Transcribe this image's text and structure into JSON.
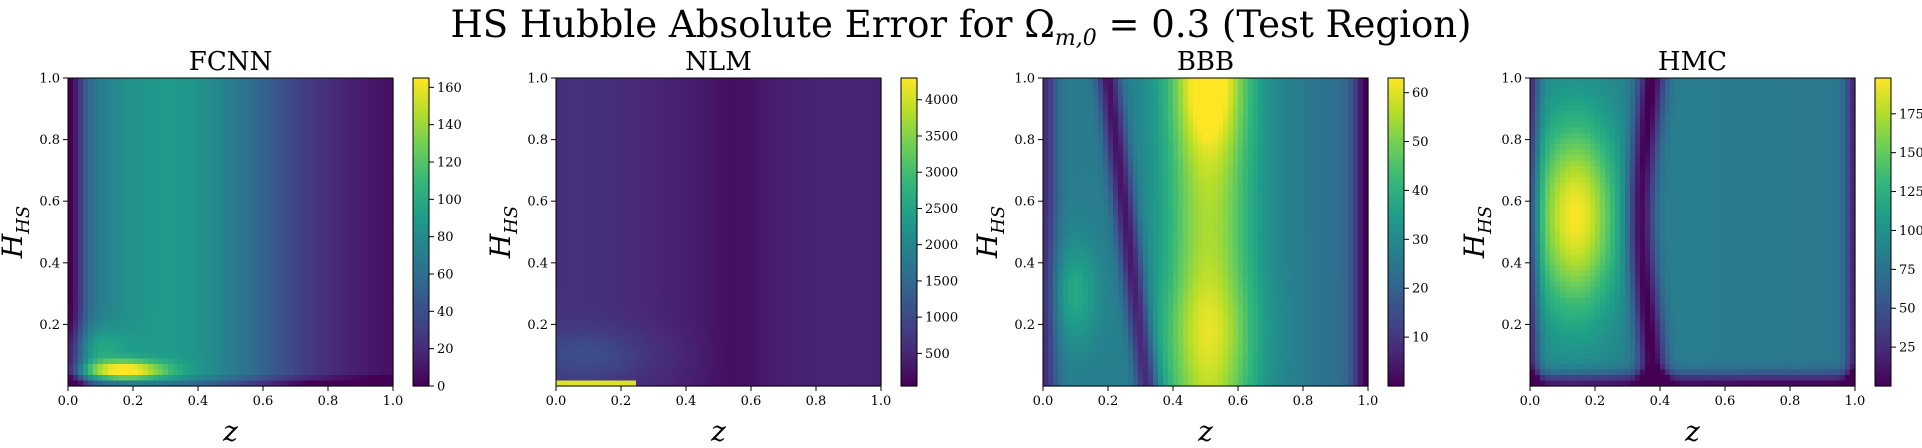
{
  "figure": {
    "title": "HS Hubble Absolute Error for Ωm,0 = 0.3 (Test Region)",
    "title_main": "HS Hubble Absolute Error for Ω",
    "title_sub": "m,0",
    "title_rest": " = 0.3 (Test Region)"
  },
  "colormap": [
    "#440154",
    "#482878",
    "#3e4989",
    "#31688e",
    "#26828e",
    "#1f9e89",
    "#35b779",
    "#6ece58",
    "#b5de2b",
    "#fde725"
  ],
  "chart_data": [
    {
      "type": "heatmap",
      "title": "FCNN",
      "xlabel": "z",
      "ylabel_main": "H",
      "ylabel_sub": "HS",
      "xlim": [
        0,
        1
      ],
      "ylim": [
        0,
        1
      ],
      "x_ticks": [
        "0.0",
        "0.2",
        "0.4",
        "0.6",
        "0.8",
        "1.0"
      ],
      "y_ticks": [
        "0.2",
        "0.4",
        "0.6",
        "0.8",
        "1.0"
      ],
      "colorbar": {
        "min": 0,
        "max": 165,
        "ticks": [
          "0",
          "20",
          "40",
          "60",
          "80",
          "100",
          "120",
          "140",
          "160"
        ]
      }
    },
    {
      "type": "heatmap",
      "title": "NLM",
      "xlabel": "z",
      "ylabel_main": "H",
      "ylabel_sub": "HS",
      "xlim": [
        0,
        1
      ],
      "ylim": [
        0,
        1
      ],
      "x_ticks": [
        "0.0",
        "0.2",
        "0.4",
        "0.6",
        "0.8",
        "1.0"
      ],
      "y_ticks": [
        "0.2",
        "0.4",
        "0.6",
        "0.8",
        "1.0"
      ],
      "colorbar": {
        "min": 50,
        "max": 4300,
        "ticks": [
          "500",
          "1000",
          "1500",
          "2000",
          "2500",
          "3000",
          "3500",
          "4000"
        ]
      }
    },
    {
      "type": "heatmap",
      "title": "BBB",
      "xlabel": "z",
      "ylabel_main": "H",
      "ylabel_sub": "HS",
      "xlim": [
        0,
        1
      ],
      "ylim": [
        0,
        1
      ],
      "x_ticks": [
        "0.0",
        "0.2",
        "0.4",
        "0.6",
        "0.8",
        "1.0"
      ],
      "y_ticks": [
        "0.2",
        "0.4",
        "0.6",
        "0.8",
        "1.0"
      ],
      "colorbar": {
        "min": 0,
        "max": 63,
        "ticks": [
          "10",
          "20",
          "30",
          "40",
          "50",
          "60"
        ]
      }
    },
    {
      "type": "heatmap",
      "title": "HMC",
      "xlabel": "z",
      "ylabel_main": "H",
      "ylabel_sub": "HS",
      "xlim": [
        0,
        1
      ],
      "ylim": [
        0,
        1
      ],
      "x_ticks": [
        "0.0",
        "0.2",
        "0.4",
        "0.6",
        "0.8",
        "1.0"
      ],
      "y_ticks": [
        "0.2",
        "0.4",
        "0.6",
        "0.8",
        "1.0"
      ],
      "colorbar": {
        "min": 0,
        "max": 198,
        "ticks": [
          "25",
          "50",
          "75",
          "100",
          "125",
          "150",
          "175"
        ]
      }
    }
  ]
}
